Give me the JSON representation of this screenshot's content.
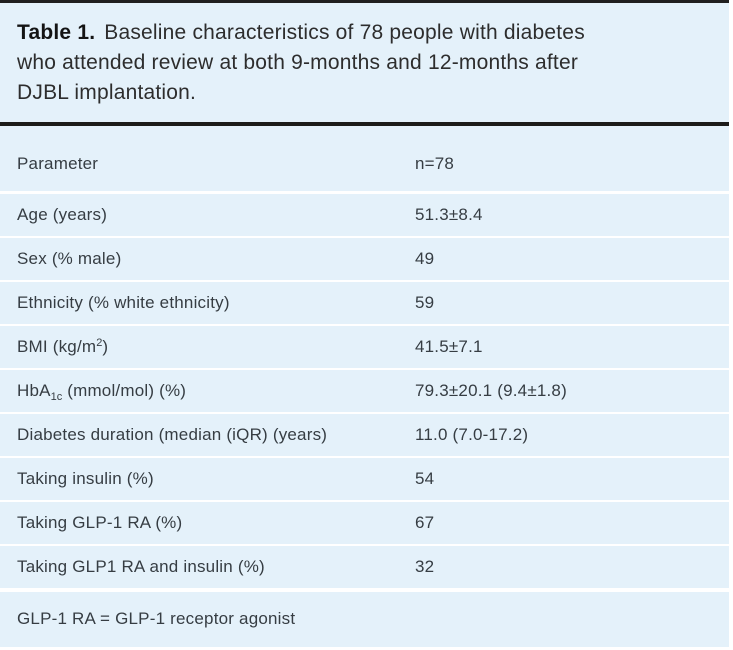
{
  "caption": {
    "title": "Table 1.",
    "line1": "Baseline characteristics of 78 people with diabetes",
    "line2": "who attended review at both 9-months and 12-months after",
    "line3": "DJBL implantation."
  },
  "table": {
    "header": {
      "param": "Parameter",
      "value": "n=78"
    },
    "rows": [
      {
        "label": [
          {
            "t": "Age (years)"
          }
        ],
        "value": "51.3±8.4"
      },
      {
        "label": [
          {
            "t": "Sex (% male)"
          }
        ],
        "value": "49"
      },
      {
        "label": [
          {
            "t": "Ethnicity (% white ethnicity)"
          }
        ],
        "value": "59"
      },
      {
        "label": [
          {
            "t": "BMI (kg/m"
          },
          {
            "t": "2",
            "s": "sup"
          },
          {
            "t": ")"
          }
        ],
        "value": "41.5±7.1"
      },
      {
        "label": [
          {
            "t": "HbA"
          },
          {
            "t": "1c",
            "s": "sub"
          },
          {
            "t": " (mmol/mol) (%)"
          }
        ],
        "value": "79.3±20.1 (9.4±1.8)"
      },
      {
        "label": [
          {
            "t": "Diabetes duration (median (iQR) (years)"
          }
        ],
        "value": "11.0 (7.0-17.2)"
      },
      {
        "label": [
          {
            "t": "Taking insulin (%)"
          }
        ],
        "value": "54"
      },
      {
        "label": [
          {
            "t": "Taking GLP-1 RA (%)"
          }
        ],
        "value": "67"
      },
      {
        "label": [
          {
            "t": "Taking GLP1 RA and insulin (%)"
          }
        ],
        "value": "32"
      }
    ],
    "footnote": "GLP-1 RA = GLP-1 receptor agonist"
  },
  "colors": {
    "panel_background": "#e4f1fa",
    "heavy_rule": "#1c1c1a",
    "separator": "#ffffff",
    "text": "#363d43"
  }
}
